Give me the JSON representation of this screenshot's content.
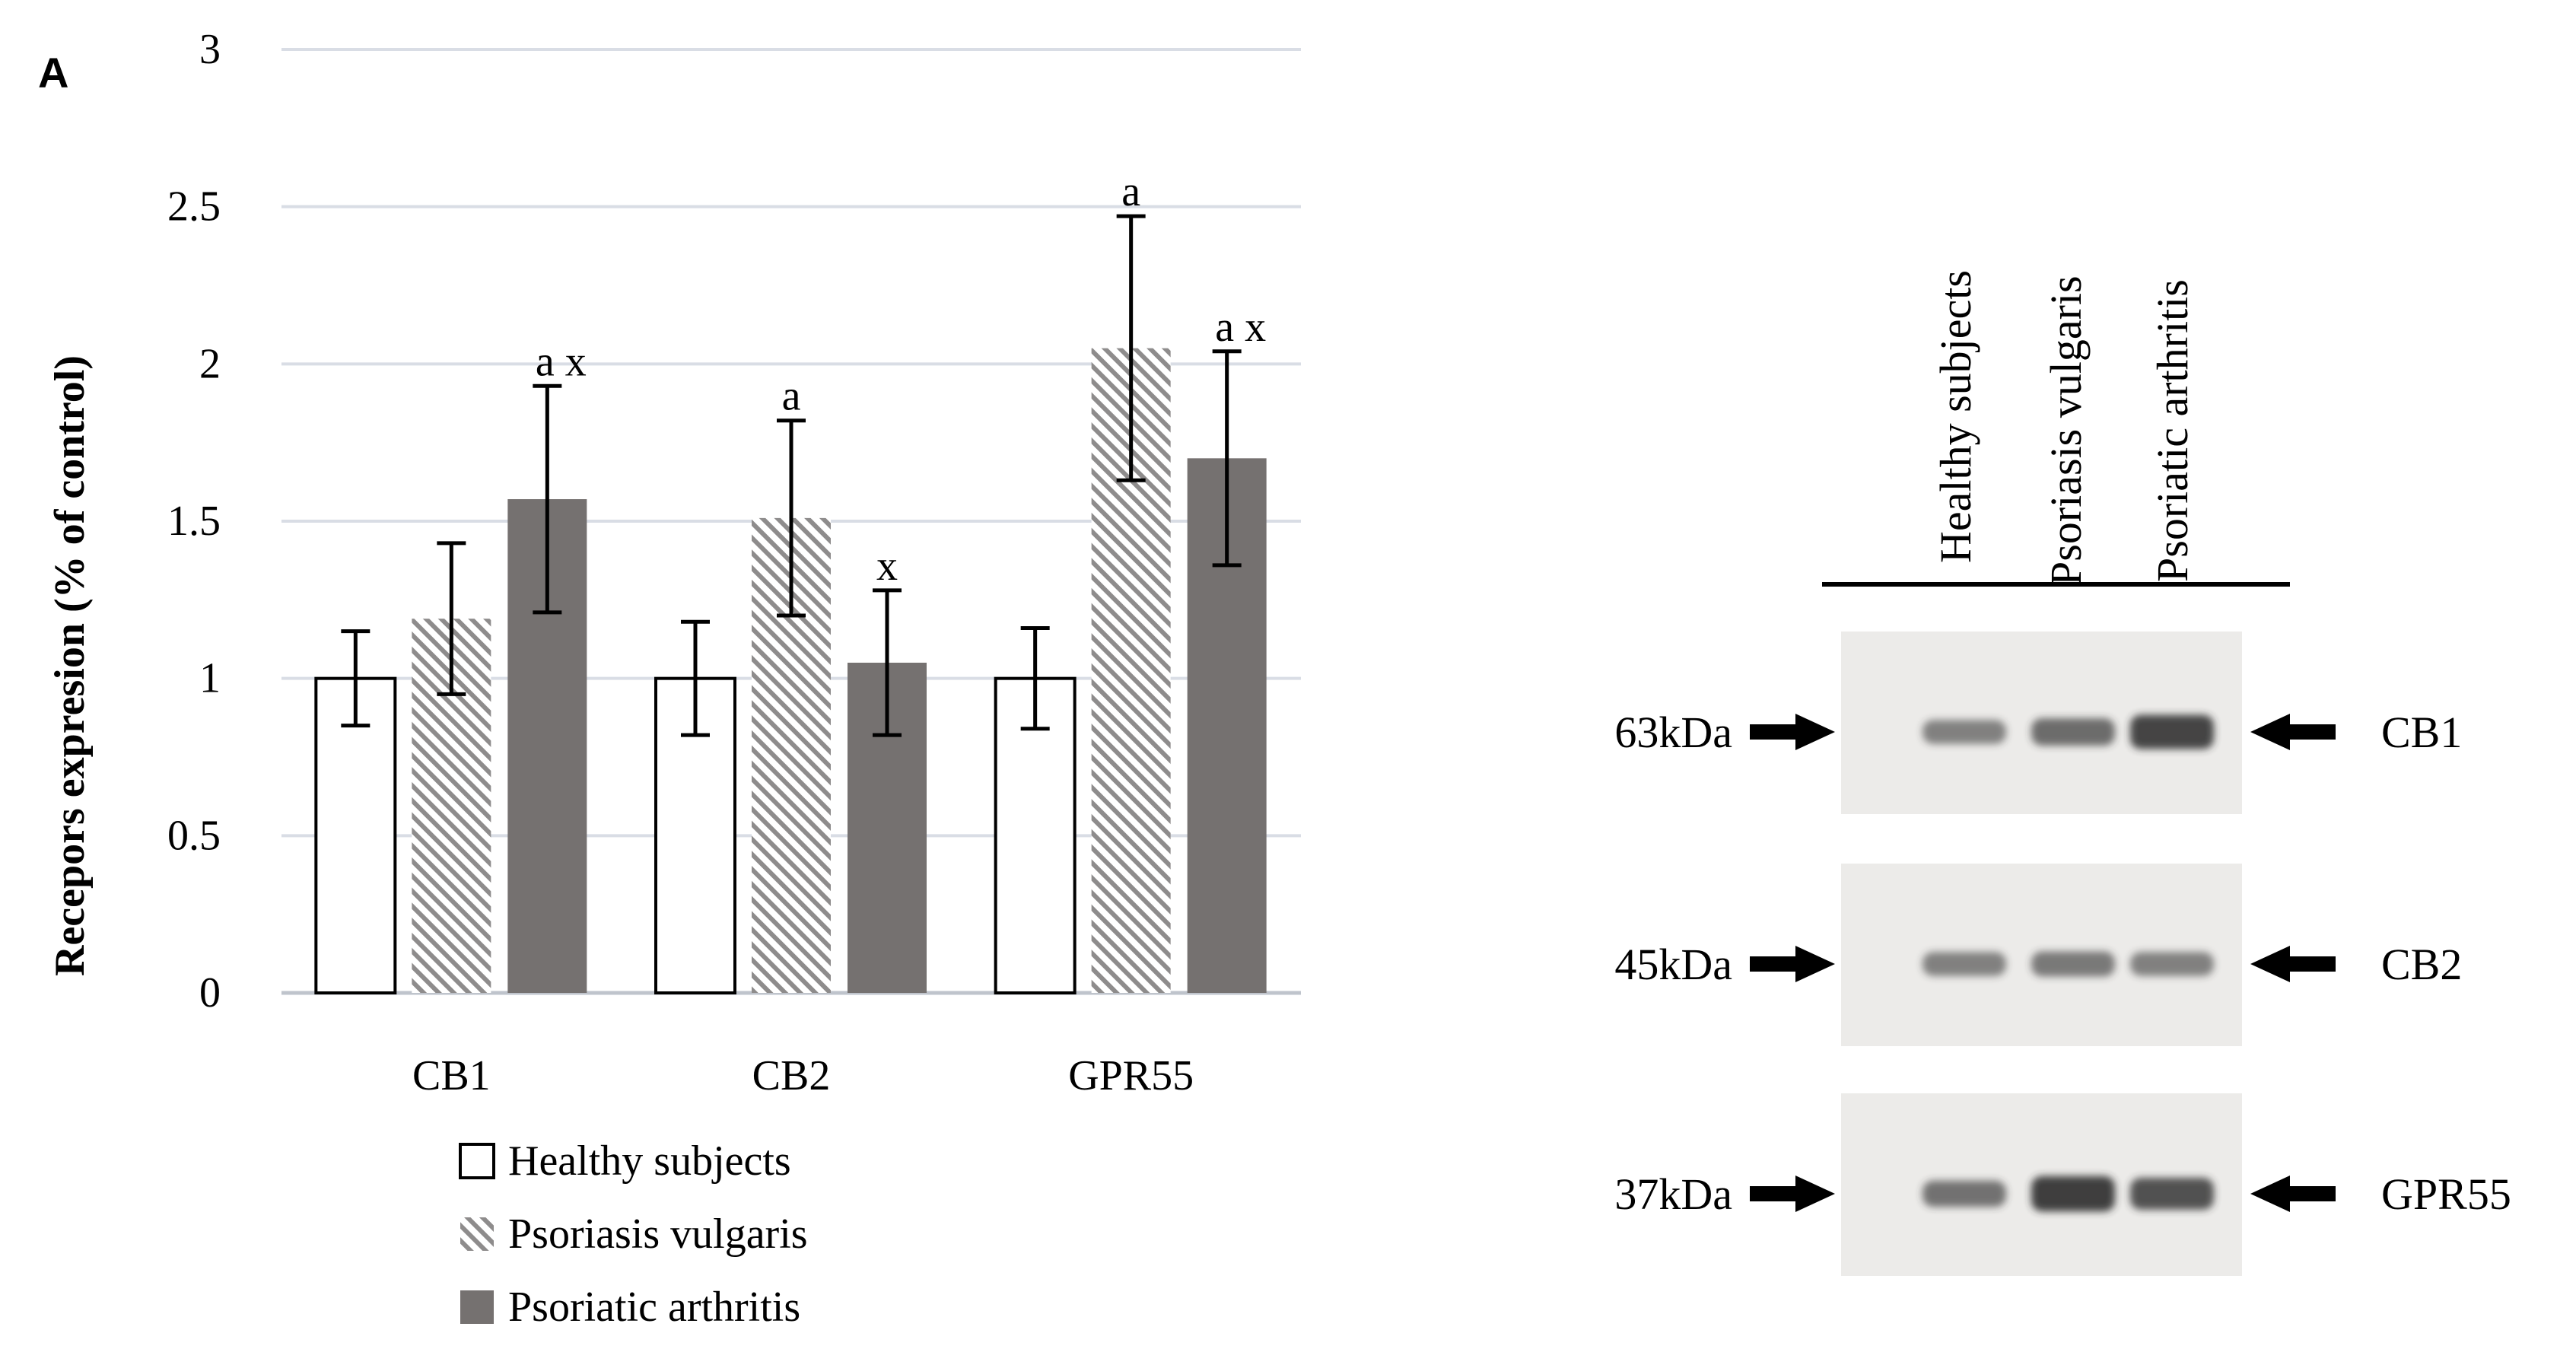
{
  "panel_label": "A",
  "chart_data": {
    "type": "bar",
    "title": "",
    "xlabel": "",
    "ylabel": "Recepors expresion (% of control)",
    "ylim": [
      0,
      3
    ],
    "yticks": [
      0,
      0.5,
      1,
      1.5,
      2,
      2.5,
      3
    ],
    "ytick_labels": [
      "0",
      "0.5",
      "1",
      "1.5",
      "2",
      "2.5",
      "3"
    ],
    "grid": true,
    "legend_position": "bottom-center",
    "categories": [
      "CB1",
      "CB2",
      "GPR55"
    ],
    "series": [
      {
        "name": "Healthy subjects",
        "style": "white",
        "values": [
          1.0,
          1.0,
          1.0
        ],
        "errors": [
          0.15,
          0.18,
          0.16
        ],
        "annotations": [
          "",
          "",
          ""
        ]
      },
      {
        "name": "Psoriasis vulgaris",
        "style": "hatched",
        "values": [
          1.19,
          1.51,
          2.05
        ],
        "errors": [
          0.24,
          0.31,
          0.42
        ],
        "annotations": [
          "",
          "a",
          "a"
        ]
      },
      {
        "name": "Psoriatic arthritis",
        "style": "dark",
        "values": [
          1.57,
          1.05,
          1.7
        ],
        "errors": [
          0.36,
          0.23,
          0.34
        ],
        "annotations": [
          "a x",
          "x",
          "a x"
        ]
      }
    ]
  },
  "blot": {
    "lane_labels": [
      "Healthy subjects",
      "Psoriasis vulgaris",
      "Psoriatic arthritis"
    ],
    "rows": [
      {
        "weight": "63kDa",
        "protein": "CB1",
        "band_intensity": [
          0.45,
          0.6,
          0.9
        ]
      },
      {
        "weight": "45kDa",
        "protein": "CB2",
        "band_intensity": [
          0.45,
          0.5,
          0.45
        ]
      },
      {
        "weight": "37kDa",
        "protein": "GPR55",
        "band_intensity": [
          0.55,
          0.95,
          0.8
        ]
      }
    ]
  },
  "colors": {
    "healthy_fill": "#ffffff",
    "hatch": "#8e8c8c",
    "arthritis_fill": "#757170",
    "grid": "#d9dde5",
    "axis": "#bfc4cc",
    "blot_bg": "#ecebe9",
    "band": "#2e2e2e"
  }
}
